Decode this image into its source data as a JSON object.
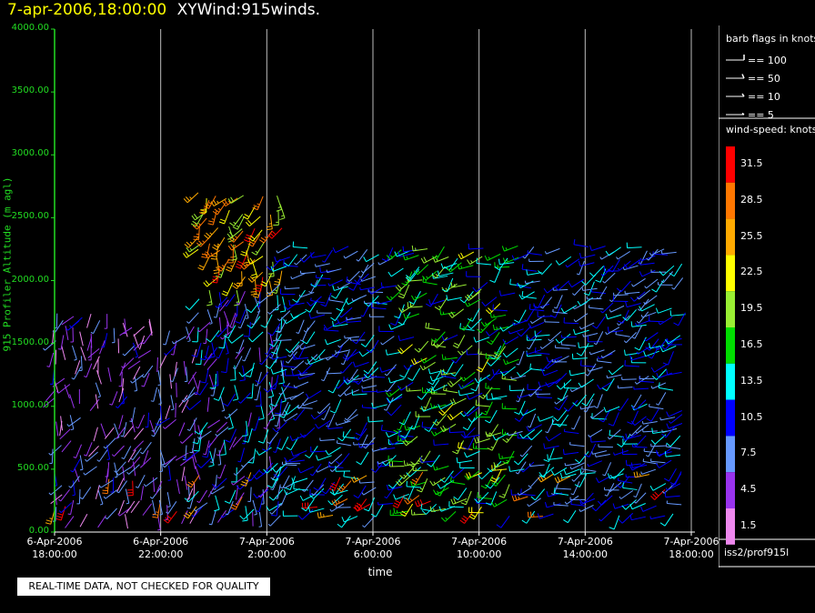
{
  "header": {
    "datetime": "7-apr-2006,18:00:00",
    "title": "XYWind:915winds."
  },
  "quality_notice": "REAL-TIME DATA, NOT CHECKED FOR QUALITY",
  "colors": {
    "axis": "#22dd22",
    "grid": "#ffffff",
    "header_date": "#ffff00"
  },
  "chart_data": {
    "type": "scatter",
    "subtype": "wind-barb time-height plot",
    "xlabel": "time",
    "ylabel": "915 Profiler Altitude (m agl)",
    "ylim": [
      0,
      4000
    ],
    "y_ticks": [
      "0.00",
      "500.00",
      "1000.00",
      "1500.00",
      "2000.00",
      "2500.00",
      "3000.00",
      "3500.00",
      "4000.00"
    ],
    "x_ticks": [
      {
        "date": "6-Apr-2006",
        "time": "18:00:00"
      },
      {
        "date": "6-Apr-2006",
        "time": "22:00:00"
      },
      {
        "date": "7-Apr-2006",
        "time": "2:00:00"
      },
      {
        "date": "7-Apr-2006",
        "time": "6:00:00"
      },
      {
        "date": "7-Apr-2006",
        "time": "10:00:00"
      },
      {
        "date": "7-Apr-2006",
        "time": "14:00:00"
      },
      {
        "date": "7-Apr-2006",
        "time": "18:00:00"
      }
    ],
    "xlim_hours": [
      0,
      24
    ],
    "grid": "vertical lines at x ticks",
    "legend_barbs": {
      "title": "barb flags in knots",
      "items": [
        "== 100",
        "== 50",
        "== 10",
        "== 5"
      ]
    },
    "colorbar": {
      "title": "wind-speed: knots",
      "bins": [
        {
          "label": "31.5",
          "color": "#ff0000"
        },
        {
          "label": "28.5",
          "color": "#ff7700"
        },
        {
          "label": "25.5",
          "color": "#ffaa00"
        },
        {
          "label": "22.5",
          "color": "#ffff00"
        },
        {
          "label": "19.5",
          "color": "#99ee33"
        },
        {
          "label": "16.5",
          "color": "#00dd00"
        },
        {
          "label": "13.5",
          "color": "#00ffff"
        },
        {
          "label": "10.5",
          "color": "#0000ff"
        },
        {
          "label": "7.5",
          "color": "#6699ff"
        },
        {
          "label": "4.5",
          "color": "#9933ee"
        },
        {
          "label": "1.5",
          "color": "#ee88ee"
        }
      ]
    },
    "source": "iss2/prof915l",
    "series": [
      {
        "period_hours": [
          0,
          5.5
        ],
        "top_altitude_m": 1750,
        "dominant_speed_kt": "1.5-7.5",
        "notes": "low-level red/orange barbs near 250-500 m"
      },
      {
        "period_hours": [
          5.5,
          8.5
        ],
        "top_altitude_m": 2700,
        "dominant_speed_kt": "4.5-28.5",
        "notes": "elevated orange/red barbs 2000-2600 m"
      },
      {
        "period_hours": [
          8.5,
          24
        ],
        "top_altitude_m": 2300,
        "dominant_speed_kt": "10.5-22.5",
        "notes": "blue to green/yellow barbs, strongest near 14:00-17:00"
      }
    ]
  }
}
